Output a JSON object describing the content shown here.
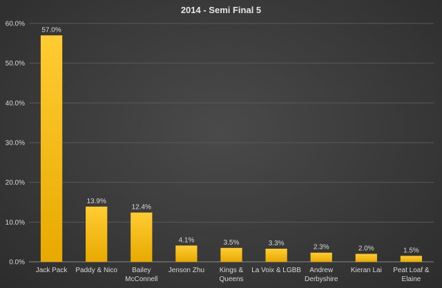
{
  "chart_data": {
    "type": "bar",
    "title": "2014 - Semi Final 5",
    "xlabel": "",
    "ylabel": "",
    "ylim": [
      0,
      60
    ],
    "y_ticks": [
      "0.0%",
      "10.0%",
      "20.0%",
      "30.0%",
      "40.0%",
      "50.0%",
      "60.0%"
    ],
    "categories": [
      [
        "Jack Pack"
      ],
      [
        "Paddy & Nico"
      ],
      [
        "Bailey",
        "McConnell"
      ],
      [
        "Jenson Zhu"
      ],
      [
        "Kings &",
        "Queens"
      ],
      [
        "La Voix & LGBB"
      ],
      [
        "Andrew",
        "Derbyshire"
      ],
      [
        "Kieran Lai"
      ],
      [
        "Peat Loaf &",
        "Elaine"
      ]
    ],
    "values": [
      57.0,
      13.9,
      12.4,
      4.1,
      3.5,
      3.3,
      2.3,
      2.0,
      1.5
    ],
    "data_labels": [
      "57.0%",
      "13.9%",
      "12.4%",
      "4.1%",
      "3.5%",
      "3.3%",
      "2.3%",
      "2.0%",
      "1.5%"
    ],
    "grid": true,
    "legend": "none",
    "bar_color": "#ffc000",
    "bar_color_dark": "#e6a800"
  }
}
